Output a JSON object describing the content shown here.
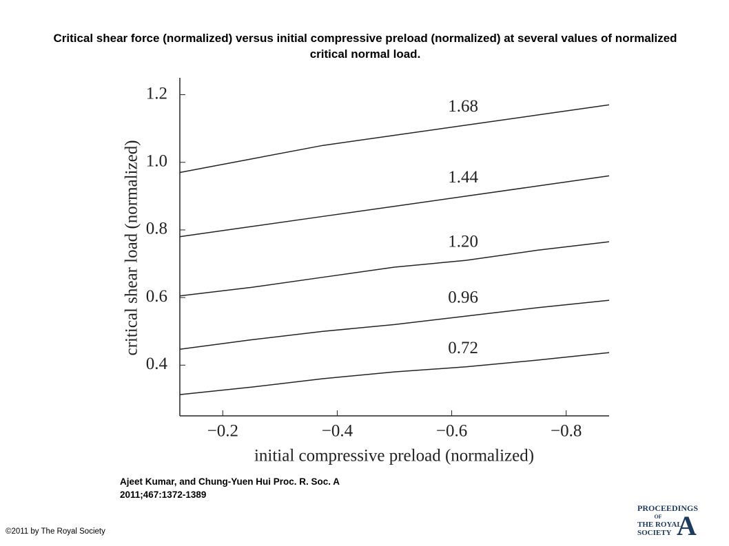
{
  "chart_data": {
    "type": "line",
    "title": "Critical shear force (normalized) versus initial compressive preload (normalized) at several values of normalized critical normal load.",
    "xlabel": "initial compressive preload (normalized)",
    "ylabel": "critical shear load (normalized)",
    "x": [
      -0.125,
      -0.25,
      -0.375,
      -0.5,
      -0.625,
      -0.75,
      -0.875
    ],
    "series": [
      {
        "name": "1.68",
        "color": "#222222",
        "values": [
          0.97,
          1.01,
          1.05,
          1.08,
          1.11,
          1.14,
          1.17
        ]
      },
      {
        "name": "1.44",
        "color": "#222222",
        "values": [
          0.78,
          0.81,
          0.84,
          0.87,
          0.9,
          0.93,
          0.96
        ]
      },
      {
        "name": "1.20",
        "color": "#222222",
        "values": [
          0.605,
          0.63,
          0.66,
          0.69,
          0.71,
          0.74,
          0.765
        ]
      },
      {
        "name": "0.96",
        "color": "#222222",
        "values": [
          0.447,
          0.475,
          0.5,
          0.52,
          0.545,
          0.57,
          0.592
        ]
      },
      {
        "name": "0.72",
        "color": "#222222",
        "values": [
          0.313,
          0.335,
          0.36,
          0.38,
          0.395,
          0.415,
          0.437
        ]
      }
    ],
    "xlim": [
      -0.125,
      -0.875
    ],
    "xticks": [
      {
        "value": -0.2,
        "label": "−0.2"
      },
      {
        "value": -0.4,
        "label": "−0.4"
      },
      {
        "value": -0.6,
        "label": "−0.6"
      },
      {
        "value": -0.8,
        "label": "−0.8"
      }
    ],
    "ylim": [
      0.25,
      1.25
    ],
    "yticks": [
      0.4,
      0.6,
      0.8,
      {
        "value": 1,
        "label": "1.0"
      },
      1.2
    ],
    "grid": false
  },
  "citation": "Ajeet Kumar, and Chung-Yuen Hui Proc. R. Soc. A 2011;467:1372-1389",
  "copyright": "©2011 by The Royal Society",
  "logo": {
    "line1": "PROCEEDINGS",
    "line2": "OF",
    "line3": "THE ROYAL",
    "line4": "SOCIETY",
    "letter": "A"
  }
}
